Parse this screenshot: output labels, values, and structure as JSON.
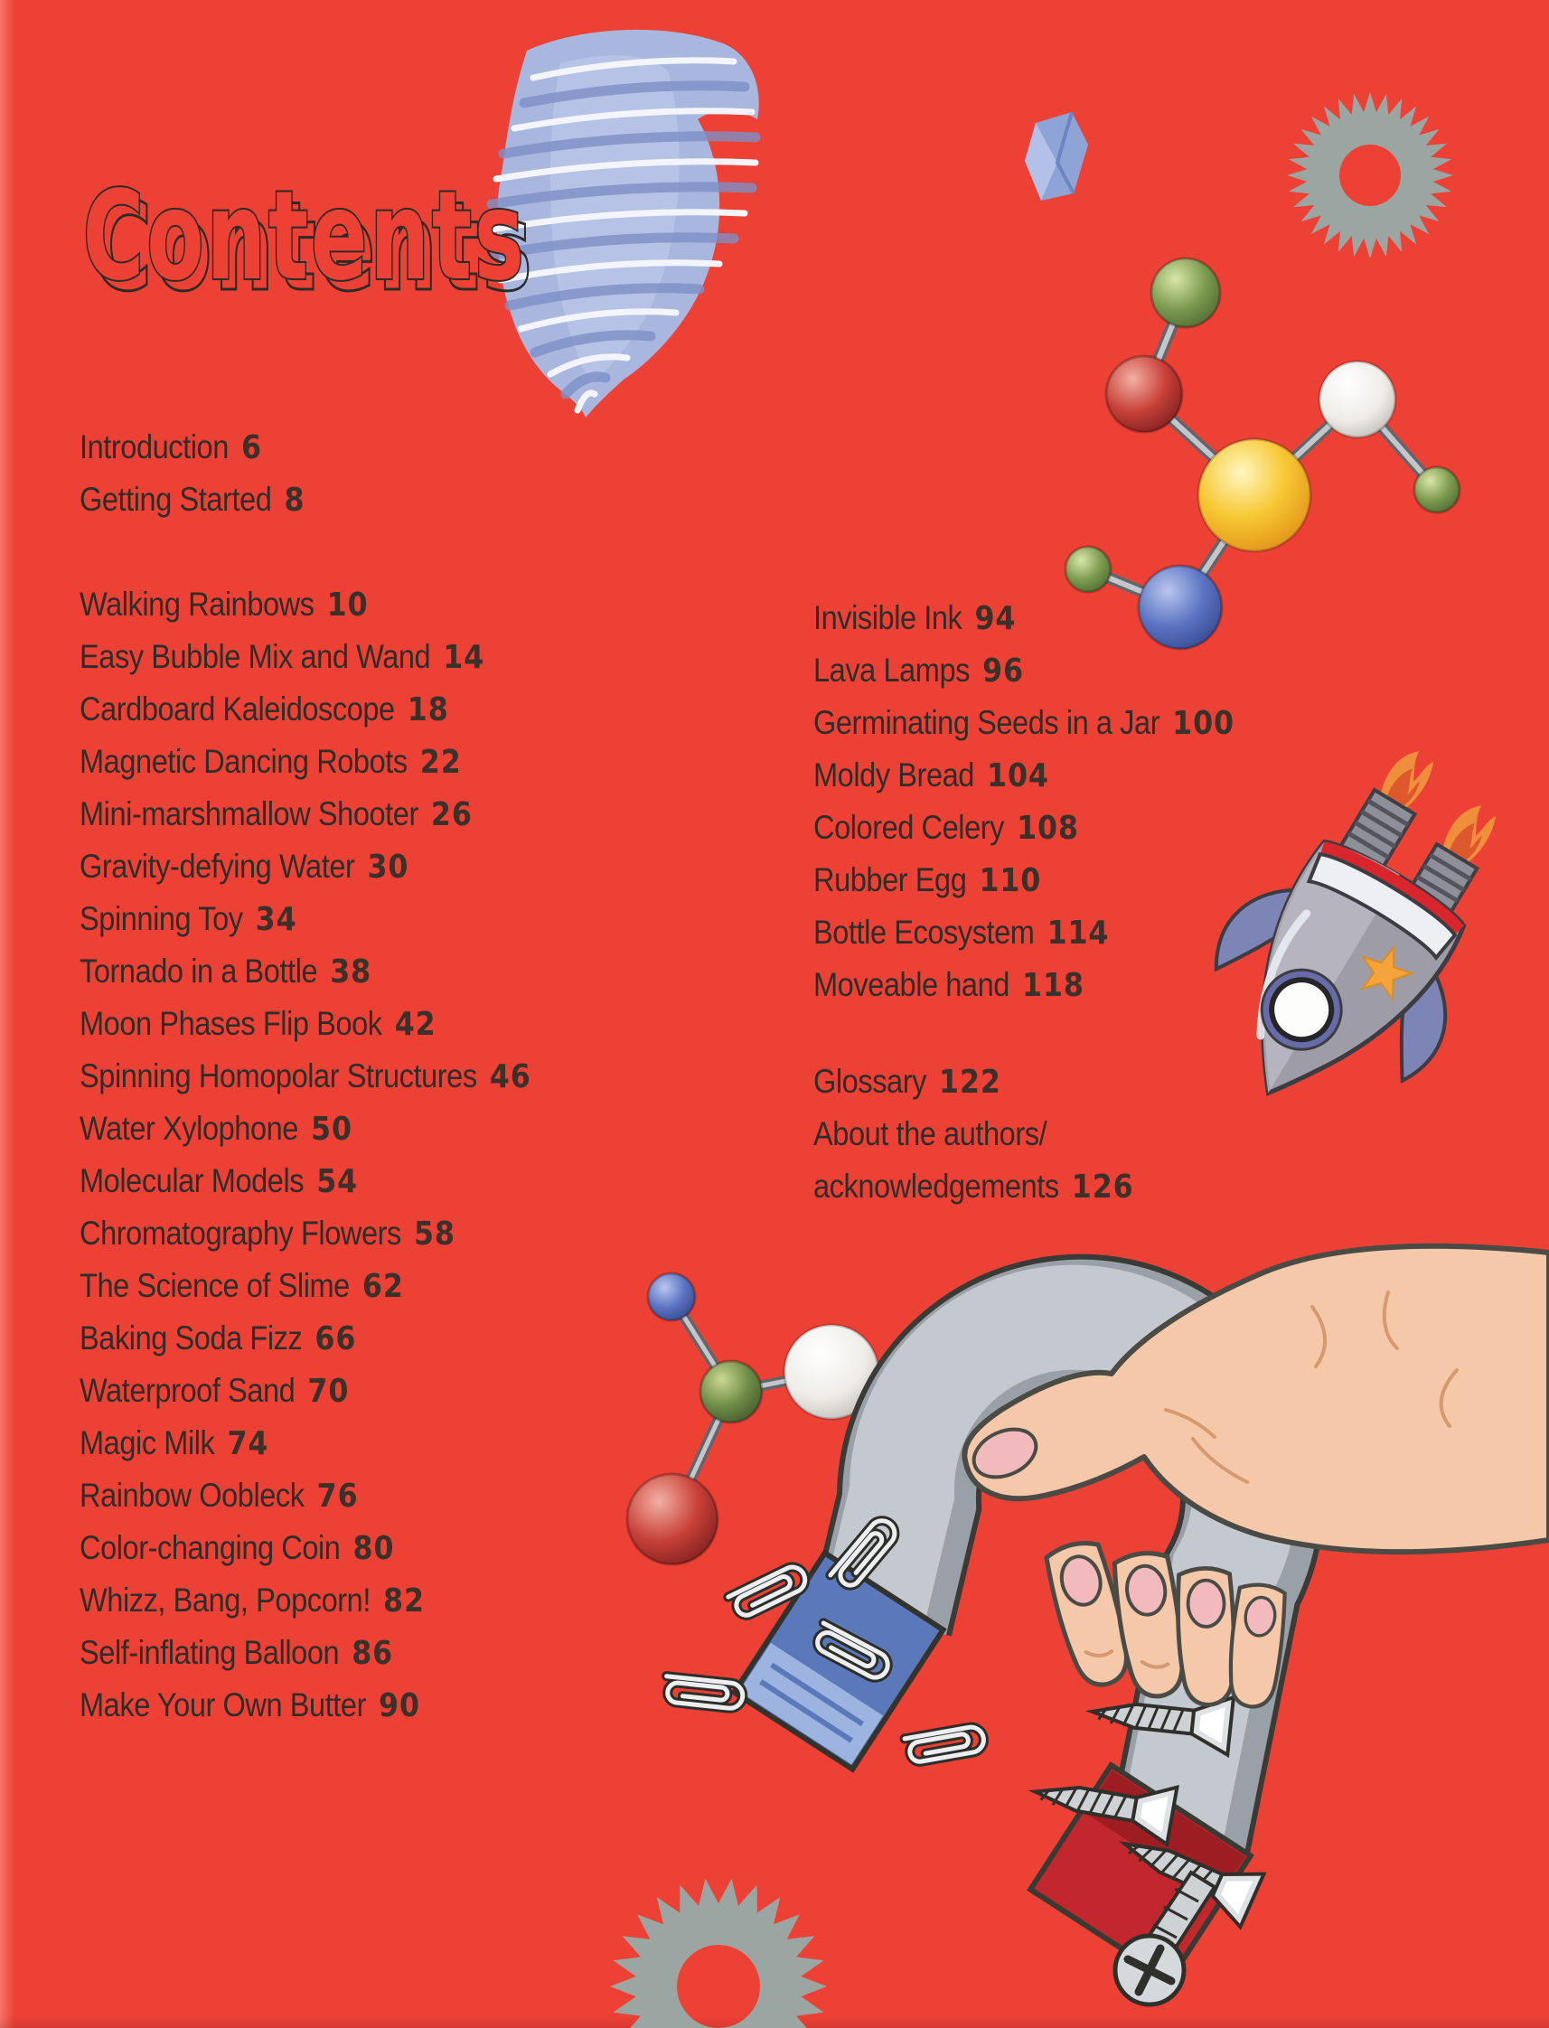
{
  "page": {
    "title": "Contents"
  },
  "colors": {
    "background": "#ee4136",
    "entry_text": "#2e2d29",
    "page_number": "#3a312b",
    "title_outline": "#2b2b28",
    "tornado_blue": "#a9b7de",
    "gear_gray": "#9ba6a2",
    "magnet_gray": "#b3b9bf",
    "magnet_pole_blue": "#5b79ba",
    "magnet_pole_red": "#c1272c",
    "hand_skin": "#f4c8a8",
    "star_orange": "#f5a43c"
  },
  "toc": {
    "front_matter": [
      {
        "label": "Introduction",
        "page": "6"
      },
      {
        "label": "Getting Started",
        "page": "8"
      }
    ],
    "experiments_left": [
      {
        "label": "Walking Rainbows",
        "page": "10"
      },
      {
        "label": "Easy Bubble Mix and Wand",
        "page": "14"
      },
      {
        "label": "Cardboard Kaleidoscope",
        "page": "18"
      },
      {
        "label": "Magnetic Dancing Robots",
        "page": "22"
      },
      {
        "label": "Mini-marshmallow Shooter",
        "page": "26"
      },
      {
        "label": "Gravity-defying Water",
        "page": "30"
      },
      {
        "label": "Spinning Toy",
        "page": "34"
      },
      {
        "label": "Tornado in a Bottle",
        "page": "38"
      },
      {
        "label": "Moon Phases Flip Book",
        "page": "42"
      },
      {
        "label": "Spinning Homopolar Structures",
        "page": "46"
      },
      {
        "label": "Water Xylophone",
        "page": "50"
      },
      {
        "label": "Molecular Models",
        "page": "54"
      },
      {
        "label": "Chromatography Flowers",
        "page": "58"
      },
      {
        "label": "The Science of Slime",
        "page": "62"
      },
      {
        "label": "Baking Soda Fizz",
        "page": "66"
      },
      {
        "label": "Waterproof Sand",
        "page": "70"
      },
      {
        "label": "Magic Milk",
        "page": "74"
      },
      {
        "label": "Rainbow Oobleck",
        "page": "76"
      },
      {
        "label": "Color-changing Coin",
        "page": "80"
      },
      {
        "label": "Whizz, Bang, Popcorn!",
        "page": "82"
      },
      {
        "label": "Self-inflating Balloon",
        "page": "86"
      },
      {
        "label": "Make Your Own Butter",
        "page": "90"
      }
    ],
    "experiments_right": [
      {
        "label": "Invisible Ink",
        "page": "94"
      },
      {
        "label": "Lava Lamps",
        "page": "96"
      },
      {
        "label": "Germinating Seeds in a Jar",
        "page": "100"
      },
      {
        "label": "Moldy Bread",
        "page": "104"
      },
      {
        "label": "Colored Celery",
        "page": "108"
      },
      {
        "label": "Rubber Egg",
        "page": "110"
      },
      {
        "label": "Bottle Ecosystem",
        "page": "114"
      },
      {
        "label": "Moveable hand",
        "page": "118"
      }
    ],
    "back_matter": [
      {
        "label": "Glossary",
        "page": "122"
      },
      {
        "label_line1": "About the authors/",
        "label_line2": "acknowledgements",
        "page": "126"
      }
    ]
  },
  "illustrations": [
    {
      "icon": "tornado-illustration"
    },
    {
      "icon": "gear-icon-top-right"
    },
    {
      "icon": "molecule-model-large"
    },
    {
      "icon": "blue-crystal-shard"
    },
    {
      "icon": "rocket-illustration"
    },
    {
      "icon": "molecule-model-small"
    },
    {
      "icon": "horseshoe-magnet-illustration"
    },
    {
      "icon": "hand-holding-magnet"
    },
    {
      "icon": "paper-clip-icons"
    },
    {
      "icon": "screw-icons"
    },
    {
      "icon": "gear-icon-bottom"
    }
  ]
}
